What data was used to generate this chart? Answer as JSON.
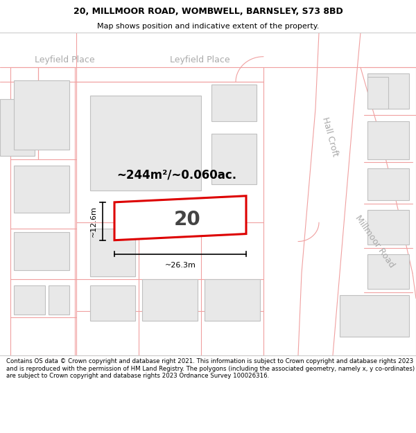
{
  "title_line1": "20, MILLMOOR ROAD, WOMBWELL, BARNSLEY, S73 8BD",
  "title_line2": "Map shows position and indicative extent of the property.",
  "footer_text": "Contains OS data © Crown copyright and database right 2021. This information is subject to Crown copyright and database rights 2023 and is reproduced with the permission of HM Land Registry. The polygons (including the associated geometry, namely x, y co-ordinates) are subject to Crown copyright and database rights 2023 Ordnance Survey 100026316.",
  "map_bg": "#ffffff",
  "building_fill": "#e8e8e8",
  "building_edge": "#c0c0c0",
  "road_line": "#f0a0a0",
  "road_fill": "#ffffff",
  "highlight_fill": "#ffffff",
  "highlight_outline": "#dd0000",
  "label_20": "20",
  "area_text": "~244m²/~0.060ac.",
  "dim_width": "~26.3m",
  "dim_height": "~12.6m",
  "street_label_1": "Leyfield Place",
  "street_label_2": "Leyfield Place",
  "street_label_3": "Hall Croft",
  "street_label_4": "Millmoor Road",
  "title_sep_color": "#cccccc",
  "footer_sep_color": "#cccccc"
}
